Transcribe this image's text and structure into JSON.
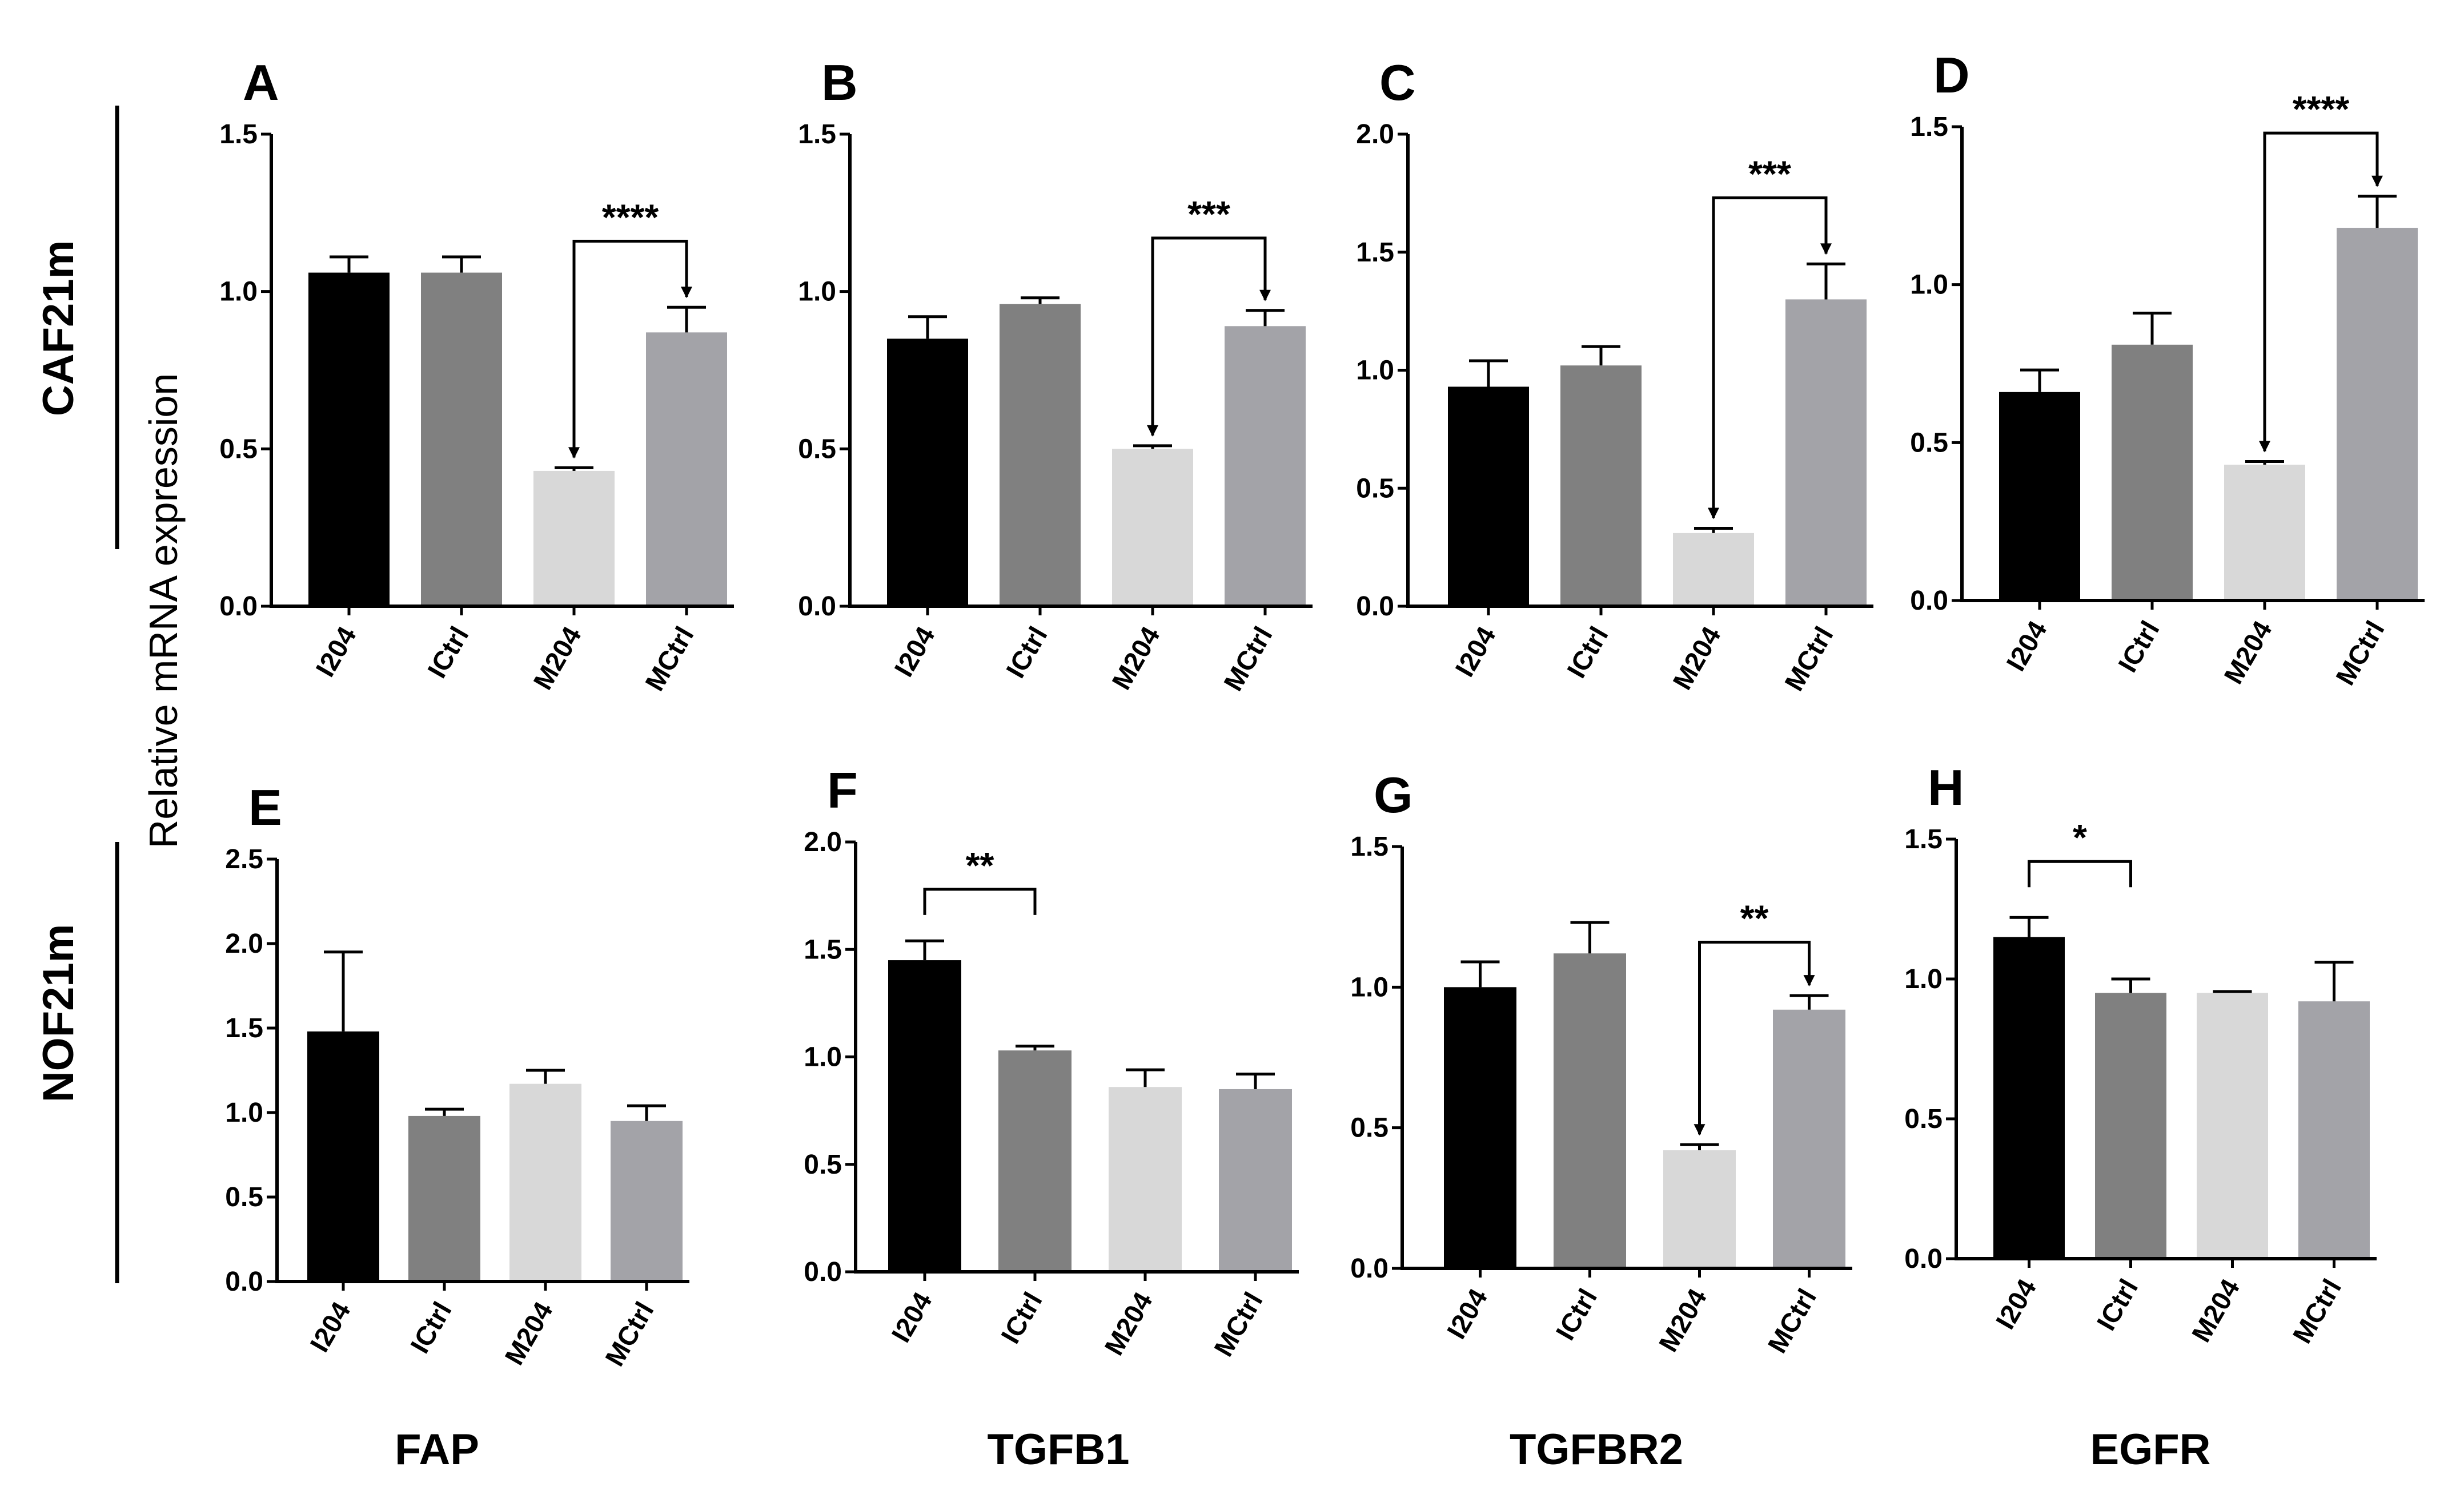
{
  "figure": {
    "ylabel": "Relative mRNA expression",
    "rows": [
      "CAF21m",
      "NOF21m"
    ],
    "genes": [
      "FAP",
      "TGFB1",
      "TGFBR2",
      "EGFR"
    ],
    "colors": {
      "I204": "#000000",
      "ICtrl": "#808080",
      "M204": "#d8d8d8",
      "MCtrl": "#a3a3a8"
    }
  },
  "chart_data": [
    {
      "panel": "A",
      "type": "bar",
      "gene": "FAP",
      "row": "CAF21m",
      "categories": [
        "I204",
        "ICtrl",
        "M204",
        "MCtrl"
      ],
      "values": [
        1.06,
        1.06,
        0.43,
        0.87
      ],
      "errors": [
        0.05,
        0.05,
        0.01,
        0.08
      ],
      "ylim": [
        0,
        1.5
      ],
      "yticks": [
        "0.0",
        "0.5",
        "1.0",
        "1.5"
      ],
      "significance": [
        {
          "from": 2,
          "to": 3,
          "label": "****",
          "level": 1.16,
          "arrows": true
        }
      ]
    },
    {
      "panel": "B",
      "type": "bar",
      "gene": "TGFB1",
      "row": "CAF21m",
      "categories": [
        "I204",
        "ICtrl",
        "M204",
        "MCtrl"
      ],
      "values": [
        0.85,
        0.96,
        0.5,
        0.89
      ],
      "errors": [
        0.07,
        0.02,
        0.01,
        0.05
      ],
      "ylim": [
        0,
        1.5
      ],
      "yticks": [
        "0.0",
        "0.5",
        "1.0",
        "1.5"
      ],
      "significance": [
        {
          "from": 2,
          "to": 3,
          "label": "***",
          "level": 1.17,
          "arrows": true
        }
      ]
    },
    {
      "panel": "C",
      "type": "bar",
      "gene": "TGFBR2",
      "row": "CAF21m",
      "categories": [
        "I204",
        "ICtrl",
        "M204",
        "MCtrl"
      ],
      "values": [
        0.93,
        1.02,
        0.31,
        1.3
      ],
      "errors": [
        0.11,
        0.08,
        0.02,
        0.15
      ],
      "ylim": [
        0,
        2.0
      ],
      "yticks": [
        "0.0",
        "0.5",
        "1.0",
        "1.5",
        "2.0"
      ],
      "significance": [
        {
          "from": 2,
          "to": 3,
          "label": "***",
          "level": 1.73,
          "arrows": true
        }
      ]
    },
    {
      "panel": "D",
      "type": "bar",
      "gene": "EGFR",
      "row": "CAF21m",
      "categories": [
        "I204",
        "ICtrl",
        "M204",
        "MCtrl"
      ],
      "values": [
        0.66,
        0.81,
        0.43,
        1.18
      ],
      "errors": [
        0.07,
        0.1,
        0.01,
        0.1
      ],
      "ylim": [
        0,
        1.5
      ],
      "yticks": [
        "0.0",
        "0.5",
        "1.0",
        "1.5"
      ],
      "significance": [
        {
          "from": 2,
          "to": 3,
          "label": "****",
          "level": 1.48,
          "arrows": true
        }
      ]
    },
    {
      "panel": "E",
      "type": "bar",
      "gene": "FAP",
      "row": "NOF21m",
      "categories": [
        "I204",
        "ICtrl",
        "M204",
        "MCtrl"
      ],
      "values": [
        1.48,
        0.98,
        1.17,
        0.95
      ],
      "errors": [
        0.47,
        0.04,
        0.08,
        0.09
      ],
      "ylim": [
        0,
        2.5
      ],
      "yticks": [
        "0.0",
        "0.5",
        "1.0",
        "1.5",
        "2.0",
        "2.5"
      ],
      "significance": []
    },
    {
      "panel": "F",
      "type": "bar",
      "gene": "TGFB1",
      "row": "NOF21m",
      "categories": [
        "I204",
        "ICtrl",
        "M204",
        "MCtrl"
      ],
      "values": [
        1.45,
        1.03,
        0.86,
        0.85
      ],
      "errors": [
        0.09,
        0.02,
        0.08,
        0.07
      ],
      "ylim": [
        0,
        2.0
      ],
      "yticks": [
        "0.0",
        "0.5",
        "1.0",
        "1.5",
        "2.0"
      ],
      "significance": [
        {
          "from": 0,
          "to": 1,
          "label": "**",
          "level": 1.78,
          "arrows": false
        }
      ]
    },
    {
      "panel": "G",
      "type": "bar",
      "gene": "TGFBR2",
      "row": "NOF21m",
      "categories": [
        "I204",
        "ICtrl",
        "M204",
        "MCtrl"
      ],
      "values": [
        1.0,
        1.12,
        0.42,
        0.92
      ],
      "errors": [
        0.09,
        0.11,
        0.02,
        0.05
      ],
      "ylim": [
        0,
        1.5
      ],
      "yticks": [
        "0.0",
        "0.5",
        "1.0",
        "1.5"
      ],
      "significance": [
        {
          "from": 2,
          "to": 3,
          "label": "**",
          "level": 1.16,
          "arrows": true
        }
      ]
    },
    {
      "panel": "H",
      "type": "bar",
      "gene": "EGFR",
      "row": "NOF21m",
      "categories": [
        "I204",
        "ICtrl",
        "M204",
        "MCtrl"
      ],
      "values": [
        1.15,
        0.95,
        0.95,
        0.92
      ],
      "errors": [
        0.07,
        0.05,
        0.005,
        0.14
      ],
      "ylim": [
        0,
        1.5
      ],
      "yticks": [
        "0.0",
        "0.5",
        "1.0",
        "1.5"
      ],
      "significance": [
        {
          "from": 0,
          "to": 1,
          "label": "*",
          "level": 1.42,
          "arrows": false
        }
      ]
    }
  ]
}
